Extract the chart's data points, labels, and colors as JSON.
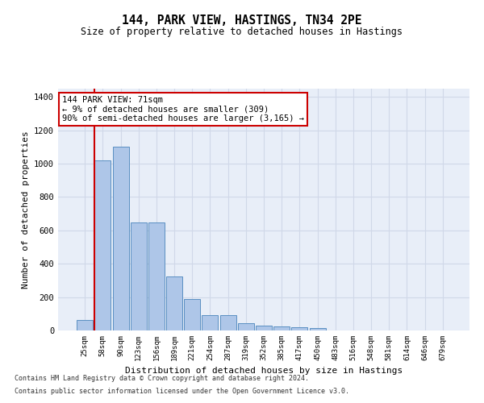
{
  "title": "144, PARK VIEW, HASTINGS, TN34 2PE",
  "subtitle": "Size of property relative to detached houses in Hastings",
  "xlabel": "Distribution of detached houses by size in Hastings",
  "ylabel": "Number of detached properties",
  "bins": [
    "25sqm",
    "58sqm",
    "90sqm",
    "123sqm",
    "156sqm",
    "189sqm",
    "221sqm",
    "254sqm",
    "287sqm",
    "319sqm",
    "352sqm",
    "385sqm",
    "417sqm",
    "450sqm",
    "483sqm",
    "516sqm",
    "548sqm",
    "581sqm",
    "614sqm",
    "646sqm",
    "679sqm"
  ],
  "bar_values": [
    65,
    1020,
    1100,
    650,
    650,
    325,
    190,
    90,
    90,
    45,
    30,
    25,
    20,
    15,
    0,
    0,
    0,
    0,
    0,
    0,
    0
  ],
  "bar_color": "#aec6e8",
  "bar_edge_color": "#5a8fc2",
  "grid_color": "#d0d8e8",
  "background_color": "#e8eef8",
  "vline_x_index": 1,
  "vline_color": "#cc0000",
  "annotation_text": "144 PARK VIEW: 71sqm\n← 9% of detached houses are smaller (309)\n90% of semi-detached houses are larger (3,165) →",
  "annotation_box_color": "#ffffff",
  "annotation_box_edge": "#cc0000",
  "footnote1": "Contains HM Land Registry data © Crown copyright and database right 2024.",
  "footnote2": "Contains public sector information licensed under the Open Government Licence v3.0.",
  "ylim": [
    0,
    1450
  ],
  "yticks": [
    0,
    200,
    400,
    600,
    800,
    1000,
    1200,
    1400
  ]
}
